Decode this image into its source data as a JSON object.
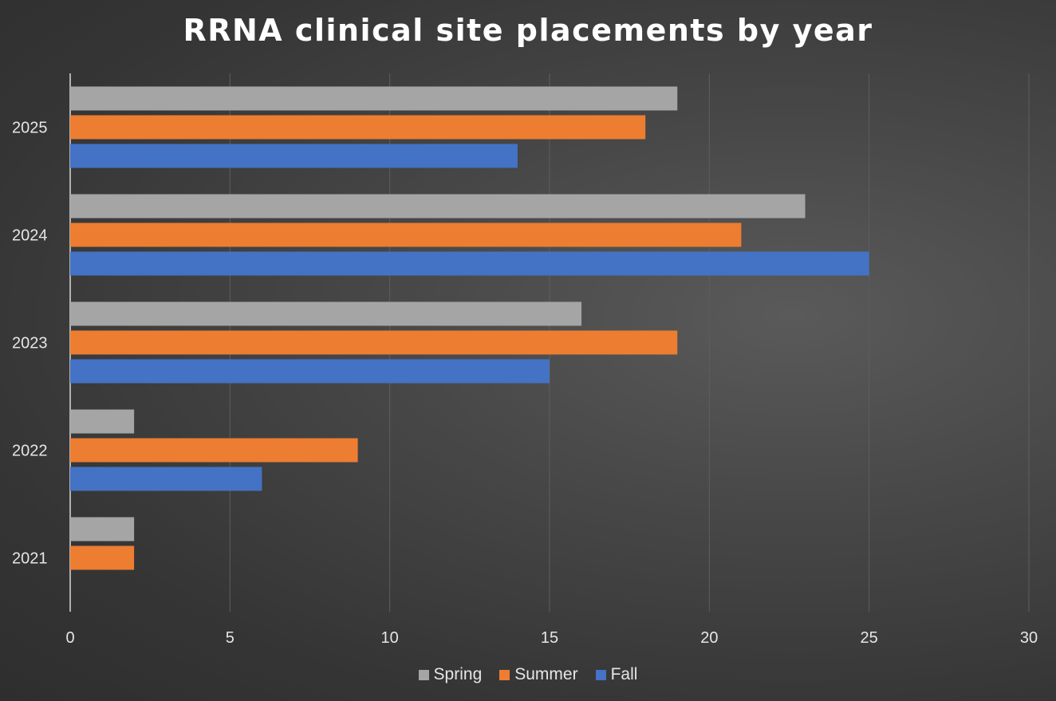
{
  "chart_data": {
    "type": "bar",
    "orientation": "horizontal",
    "title": "RRNA clinical site placements by year",
    "categories": [
      "2025",
      "2024",
      "2023",
      "2022",
      "2021"
    ],
    "series": [
      {
        "name": "Spring",
        "color": "#a5a5a5",
        "values": [
          19,
          23,
          16,
          2,
          2
        ]
      },
      {
        "name": "Summer",
        "color": "#ed7d31",
        "values": [
          18,
          21,
          19,
          9,
          2
        ]
      },
      {
        "name": "Fall",
        "color": "#4472c4",
        "values": [
          14,
          25,
          15,
          6,
          0
        ]
      }
    ],
    "xlim": [
      0,
      30
    ],
    "xticks": [
      "0",
      "5",
      "10",
      "15",
      "20",
      "25",
      "30"
    ],
    "grid": true,
    "legend": "bottom-center"
  }
}
